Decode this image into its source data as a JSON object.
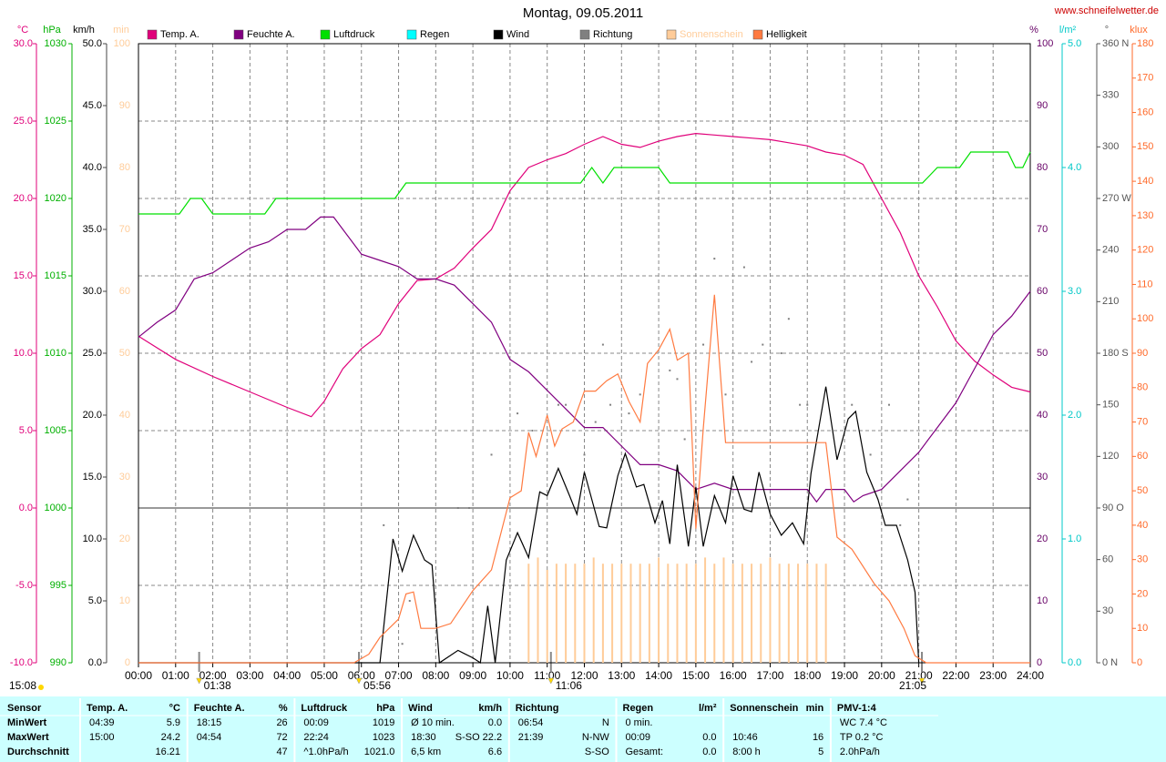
{
  "chart_data": {
    "type": "line",
    "title": "Montag, 09.05.2011",
    "source": "www.schneifelwetter.de",
    "grid": true,
    "zero_line": true,
    "xlim": [
      0,
      24
    ],
    "xticks": [
      {
        "value": 0,
        "label": "00:00"
      },
      {
        "value": 1,
        "label": "01:00"
      },
      {
        "value": 2,
        "label": "02:00"
      },
      {
        "value": 3,
        "label": "03:00"
      },
      {
        "value": 4,
        "label": "04:00"
      },
      {
        "value": 5,
        "label": "05:00"
      },
      {
        "value": 6,
        "label": "06:00"
      },
      {
        "value": 7,
        "label": "07:00"
      },
      {
        "value": 8,
        "label": "08:00"
      },
      {
        "value": 9,
        "label": "09:00"
      },
      {
        "value": 10,
        "label": "10:00"
      },
      {
        "value": 11,
        "label": "11:00"
      },
      {
        "value": 12,
        "label": "12:00"
      },
      {
        "value": 13,
        "label": "13:00"
      },
      {
        "value": 14,
        "label": "14:00"
      },
      {
        "value": 15,
        "label": "15:00"
      },
      {
        "value": 16,
        "label": "16:00"
      },
      {
        "value": 17,
        "label": "17:00"
      },
      {
        "value": 18,
        "label": "18:00"
      },
      {
        "value": 19,
        "label": "19:00"
      },
      {
        "value": 20,
        "label": "20:00"
      },
      {
        "value": 21,
        "label": "21:00"
      },
      {
        "value": 22,
        "label": "22:00"
      },
      {
        "value": 23,
        "label": "23:00"
      },
      {
        "value": 24,
        "label": "24:00"
      }
    ],
    "events": [
      {
        "value": 1.6333,
        "label": "01:38"
      },
      {
        "value": 5.9333,
        "label": "05:56"
      },
      {
        "value": 11.1,
        "label": "11:06"
      },
      {
        "value": 21.0833,
        "label": "21:05"
      }
    ],
    "moon_label": "15:08",
    "axes": [
      {
        "title": "°C",
        "side": "left",
        "color": "#e0007a",
        "lim": [
          -10,
          30
        ],
        "ticks": [
          {
            "value": 30,
            "label": "30.0"
          },
          {
            "value": 25,
            "label": "25.0"
          },
          {
            "value": 20,
            "label": "20.0"
          },
          {
            "value": 15,
            "label": "15.0"
          },
          {
            "value": 10,
            "label": "10.0"
          },
          {
            "value": 5,
            "label": "5.0"
          },
          {
            "value": 0,
            "label": "0.0"
          },
          {
            "value": -5,
            "label": "-5.0"
          },
          {
            "value": -10,
            "label": "-10.0"
          }
        ]
      },
      {
        "title": "hPa",
        "side": "left",
        "color": "#00b000",
        "lim": [
          990,
          1030
        ],
        "ticks": [
          1030,
          1025,
          1020,
          1015,
          1010,
          1005,
          1000,
          995,
          990
        ]
      },
      {
        "title": "km/h",
        "side": "left",
        "color": "#000000",
        "lim": [
          0,
          50
        ],
        "ticks": [
          {
            "value": 50,
            "label": "50.0"
          },
          {
            "value": 45,
            "label": "45.0"
          },
          {
            "value": 40,
            "label": "40.0"
          },
          {
            "value": 35,
            "label": "35.0"
          },
          {
            "value": 30,
            "label": "30.0"
          },
          {
            "value": 25,
            "label": "25.0"
          },
          {
            "value": 20,
            "label": "20.0"
          },
          {
            "value": 15,
            "label": "15.0"
          },
          {
            "value": 10,
            "label": "10.0"
          },
          {
            "value": 5,
            "label": "5.0"
          },
          {
            "value": 0,
            "label": "0.0"
          }
        ]
      },
      {
        "title": "min",
        "side": "left",
        "color": "#ffcc99",
        "lim": [
          0,
          100
        ],
        "ticks": [
          100,
          90,
          80,
          70,
          60,
          50,
          40,
          30,
          20,
          10,
          0
        ]
      },
      {
        "title": "%",
        "side": "right",
        "color": "#660066",
        "lim": [
          0,
          100
        ],
        "ticks": [
          100,
          90,
          80,
          70,
          60,
          50,
          40,
          30,
          20,
          10,
          0
        ]
      },
      {
        "title": "l/m²",
        "side": "right",
        "color": "#00c8c8",
        "lim": [
          0,
          5
        ],
        "ticks": [
          {
            "value": 5,
            "label": "5.0"
          },
          {
            "value": 4,
            "label": "4.0"
          },
          {
            "value": 3,
            "label": "3.0"
          },
          {
            "value": 2,
            "label": "2.0"
          },
          {
            "value": 1,
            "label": "1.0"
          },
          {
            "value": 0,
            "label": "0.0"
          }
        ]
      },
      {
        "title": "°",
        "side": "right",
        "color": "#555555",
        "lim": [
          0,
          360
        ],
        "ticks": [
          {
            "value": 360,
            "label": "360 N"
          },
          330,
          300,
          {
            "value": 270,
            "label": "270 W"
          },
          240,
          210,
          {
            "value": 180,
            "label": "180 S"
          },
          150,
          120,
          {
            "value": 90,
            "label": "90  O"
          },
          60,
          30,
          {
            "value": 0,
            "label": "0   N"
          }
        ]
      },
      {
        "title": "klux",
        "side": "right",
        "color": "#ff6a2a",
        "lim": [
          0,
          180
        ],
        "ticks": [
          180,
          170,
          160,
          150,
          140,
          130,
          120,
          110,
          100,
          90,
          80,
          70,
          60,
          50,
          40,
          30,
          20,
          10,
          0
        ]
      }
    ],
    "series": [
      {
        "name": "Temp. A.",
        "color": "#e0007a",
        "axis": 0,
        "mark": "line",
        "x": [
          0,
          1,
          2,
          3,
          4,
          4.65,
          5,
          5.5,
          6,
          6.5,
          7,
          7.5,
          8,
          8.5,
          9,
          9.5,
          10,
          10.5,
          11,
          11.5,
          12,
          12.5,
          13,
          13.5,
          14,
          14.5,
          15,
          15.5,
          16,
          16.5,
          17,
          17.5,
          18,
          18.5,
          19,
          19.5,
          20,
          20.5,
          21,
          21.5,
          22,
          22.5,
          23,
          23.5,
          24
        ],
        "values": [
          11.1,
          9.6,
          8.5,
          7.5,
          6.5,
          5.9,
          6.9,
          9.0,
          10.3,
          11.2,
          13.2,
          14.7,
          14.8,
          15.5,
          16.8,
          18.0,
          20.5,
          22.0,
          22.5,
          22.9,
          23.5,
          24.0,
          23.5,
          23.3,
          23.7,
          24.0,
          24.2,
          24.1,
          24.0,
          23.9,
          23.8,
          23.6,
          23.4,
          23.0,
          22.8,
          22.2,
          20.0,
          17.8,
          15.0,
          13.0,
          10.8,
          9.5,
          8.6,
          7.8,
          7.5
        ]
      },
      {
        "name": "Feuchte A.",
        "color": "#800080",
        "axis": 4,
        "mark": "line",
        "x": [
          0,
          0.5,
          1,
          1.5,
          2,
          2.5,
          3,
          3.5,
          4,
          4.5,
          4.9,
          5.25,
          5.5,
          6,
          6.5,
          7,
          7.5,
          8,
          8.5,
          9,
          9.5,
          10,
          10.5,
          11,
          11.5,
          12,
          12.5,
          13,
          13.5,
          14,
          14.5,
          15,
          15.5,
          16,
          16.5,
          17,
          17.5,
          18,
          18.25,
          18.5,
          19,
          19.25,
          19.5,
          20,
          20.5,
          21,
          21.5,
          22,
          22.5,
          23,
          23.5,
          24
        ],
        "values": [
          52.6,
          55,
          57,
          62,
          63,
          65,
          67,
          68,
          70,
          70,
          72,
          72,
          70,
          66,
          65,
          64,
          62,
          62,
          61,
          58,
          55,
          49,
          47,
          44,
          41,
          38,
          38,
          35,
          32,
          32,
          31,
          28,
          29,
          28,
          28,
          28,
          28,
          28,
          26,
          28,
          28,
          26,
          27,
          28,
          31,
          34,
          38,
          42,
          47.5,
          53,
          56,
          60
        ]
      },
      {
        "name": "Luftdruck",
        "color": "#00e000",
        "axis": 1,
        "mark": "line",
        "x": [
          0,
          1.1,
          1.4,
          1.7,
          2,
          3.4,
          3.7,
          6.9,
          7.2,
          11.9,
          12.2,
          12.5,
          12.8,
          14,
          14.3,
          21.1,
          21.5,
          22.1,
          22.4,
          23.4,
          23.6,
          23.8,
          24
        ],
        "values": [
          1019,
          1019,
          1020,
          1020,
          1019,
          1019,
          1020,
          1020,
          1021,
          1021,
          1022,
          1021,
          1022,
          1022,
          1021,
          1021,
          1022,
          1022,
          1023,
          1023,
          1022,
          1022,
          1023
        ]
      },
      {
        "name": "Regen",
        "color": "#00ffff",
        "axis": 5,
        "mark": "line"
      },
      {
        "name": "Wind",
        "color": "#000000",
        "axis": 2,
        "mark": "line",
        "x": [
          0,
          6.5,
          6.85,
          7.1,
          7.4,
          7.7,
          7.9,
          8.1,
          8.6,
          9.0,
          9.2,
          9.4,
          9.6,
          9.9,
          10.2,
          10.5,
          10.8,
          11.0,
          11.3,
          11.6,
          11.8,
          12.0,
          12.4,
          12.6,
          12.9,
          13.1,
          13.4,
          13.6,
          13.9,
          14.1,
          14.3,
          14.5,
          14.8,
          15.0,
          15.2,
          15.5,
          15.8,
          16.0,
          16.3,
          16.5,
          16.7,
          17.0,
          17.3,
          17.6,
          17.9,
          18.1,
          18.5,
          18.8,
          19.1,
          19.3,
          19.6,
          19.9,
          20.1,
          20.4,
          20.7,
          20.9,
          21.0
        ],
        "values": [
          0,
          0,
          10.0,
          7.4,
          10.3,
          8.3,
          7.9,
          0,
          1,
          0.4,
          0,
          4.6,
          0,
          8.3,
          10.5,
          8.5,
          13.8,
          13.5,
          15.7,
          13.5,
          12,
          15.4,
          11,
          10.9,
          15.1,
          16.9,
          14.2,
          14.4,
          11.3,
          13.1,
          9.6,
          16,
          9.4,
          14.2,
          9.4,
          13.5,
          11.3,
          15.1,
          12.4,
          12.2,
          15.4,
          12,
          10.3,
          11.3,
          9.6,
          15.3,
          22.3,
          16.4,
          19.7,
          20.3,
          15.4,
          13.2,
          11.1,
          11.1,
          8.3,
          5.7,
          0
        ]
      },
      {
        "name": "Richtung",
        "color": "#808080",
        "axis": 6,
        "mark": "dot",
        "x": [
          6.6,
          7.1,
          7.3,
          8.6,
          8.9,
          9.5,
          10.2,
          10.6,
          11.3,
          11.5,
          12.0,
          12.3,
          12.5,
          12.7,
          13.2,
          13.5,
          14.3,
          14.5,
          14.7,
          15.2,
          15.5,
          15.8,
          16.3,
          16.5,
          16.8,
          17.3,
          17.5,
          17.8,
          18.0,
          19.2,
          19.7,
          20.2,
          20.5,
          20.7
        ],
        "values": [
          80,
          11,
          36,
          90,
          90,
          121,
          145,
          135,
          150,
          150,
          121,
          140,
          185,
          150,
          145,
          156,
          170,
          165,
          130,
          185,
          235,
          156,
          230,
          175,
          185,
          180,
          200,
          150,
          150,
          150,
          121,
          150,
          80,
          95
        ]
      },
      {
        "name": "Sonnenschein",
        "color": "#ffcc99",
        "axis": 3,
        "mark": "bar",
        "x": [
          10.5,
          10.75,
          11,
          11.25,
          11.5,
          11.75,
          12,
          12.25,
          12.5,
          12.75,
          13,
          13.25,
          13.5,
          13.75,
          14,
          14.25,
          14.5,
          14.75,
          15,
          15.25,
          15.5,
          15.75,
          16,
          16.25,
          16.5,
          16.75,
          17,
          17.25,
          17.5,
          17.75,
          18,
          18.25,
          18.5
        ],
        "values": [
          16,
          17,
          15,
          16,
          16,
          16,
          16,
          17,
          16,
          16,
          16,
          16,
          16,
          16,
          17,
          16,
          16,
          16,
          16,
          17,
          16,
          17,
          16,
          16,
          16,
          16,
          17,
          16,
          16,
          16,
          16,
          16,
          16
        ]
      },
      {
        "name": "Helligkeit",
        "color": "#ff7a40",
        "axis": 7,
        "mark": "line",
        "x": [
          0,
          5.8,
          6.2,
          6.5,
          7.0,
          7.2,
          7.4,
          7.6,
          8.0,
          8.4,
          9.0,
          9.5,
          10.0,
          10.3,
          10.5,
          10.7,
          11.0,
          11.2,
          11.4,
          11.7,
          12.0,
          12.3,
          12.6,
          12.9,
          13.2,
          13.5,
          13.7,
          14.0,
          14.3,
          14.5,
          14.8,
          15.0,
          15.2,
          15.5,
          15.8,
          17.0,
          18.0,
          18.5,
          18.8,
          19.2,
          19.8,
          20.2,
          20.6,
          20.9,
          21.2,
          24
        ],
        "values": [
          0,
          0,
          2.5,
          7.4,
          12.7,
          20,
          20.6,
          10,
          10,
          11.4,
          21,
          27,
          48,
          50,
          67,
          60,
          72,
          63,
          68,
          70,
          79,
          79,
          82,
          84,
          76,
          70,
          87,
          91,
          97,
          88,
          90,
          39,
          68,
          107,
          64,
          64,
          64,
          64,
          36.5,
          33,
          23,
          18,
          10,
          2,
          0,
          0
        ]
      }
    ]
  },
  "table": {
    "row_labels": [
      "Sensor",
      "MinWert",
      "MaxWert",
      "Durchschnitt"
    ],
    "groups": [
      {
        "title": "Temp. A.",
        "unit": "°C",
        "rows": [
          {
            "left": "04:39",
            "right": "5.9"
          },
          {
            "left": "15:00",
            "right": "24.2"
          },
          {
            "right": "16.21"
          }
        ]
      },
      {
        "title": "Feuchte A.",
        "unit": "%",
        "rows": [
          {
            "left": "18:15",
            "right": "26"
          },
          {
            "left": "04:54",
            "right": "72"
          },
          {
            "right": "47"
          }
        ]
      },
      {
        "title": "Luftdruck",
        "unit": "hPa",
        "rows": [
          {
            "left": "00:09",
            "right": "1019"
          },
          {
            "left": "22:24",
            "right": "1023"
          },
          {
            "left": "^1.0hPa/h",
            "right": "1021.0"
          }
        ]
      },
      {
        "title": "Wind",
        "unit": "km/h",
        "rows": [
          {
            "left": "Ø 10 min.",
            "right": "0.0"
          },
          {
            "left": "18:30",
            "right": "S-SO 22.2"
          },
          {
            "left": "6,5 km",
            "right": "6.6"
          }
        ]
      },
      {
        "title": "Richtung",
        "rows": [
          {
            "left": "06:54",
            "right": "N"
          },
          {
            "left": "21:39",
            "right": "N-NW"
          },
          {
            "right": "S-SO"
          }
        ]
      },
      {
        "title": "Regen",
        "unit": "l/m²",
        "rows": [
          {
            "left": "0 min."
          },
          {
            "left": "00:09",
            "right": "0.0"
          },
          {
            "left": "Gesamt:",
            "right": "0.0"
          }
        ]
      },
      {
        "title": "Sonnenschein",
        "unit": "min",
        "rows": [
          {},
          {
            "left": "10:46",
            "right": "16"
          },
          {
            "left": "8:00 h",
            "right": "5"
          }
        ]
      },
      {
        "title": "PMV-1:4",
        "rows": [
          {
            "left": "WC 7.4 °C"
          },
          {
            "left": "TP 0.2 °C"
          },
          {
            "left": "2.0hPa/h"
          }
        ]
      }
    ]
  }
}
